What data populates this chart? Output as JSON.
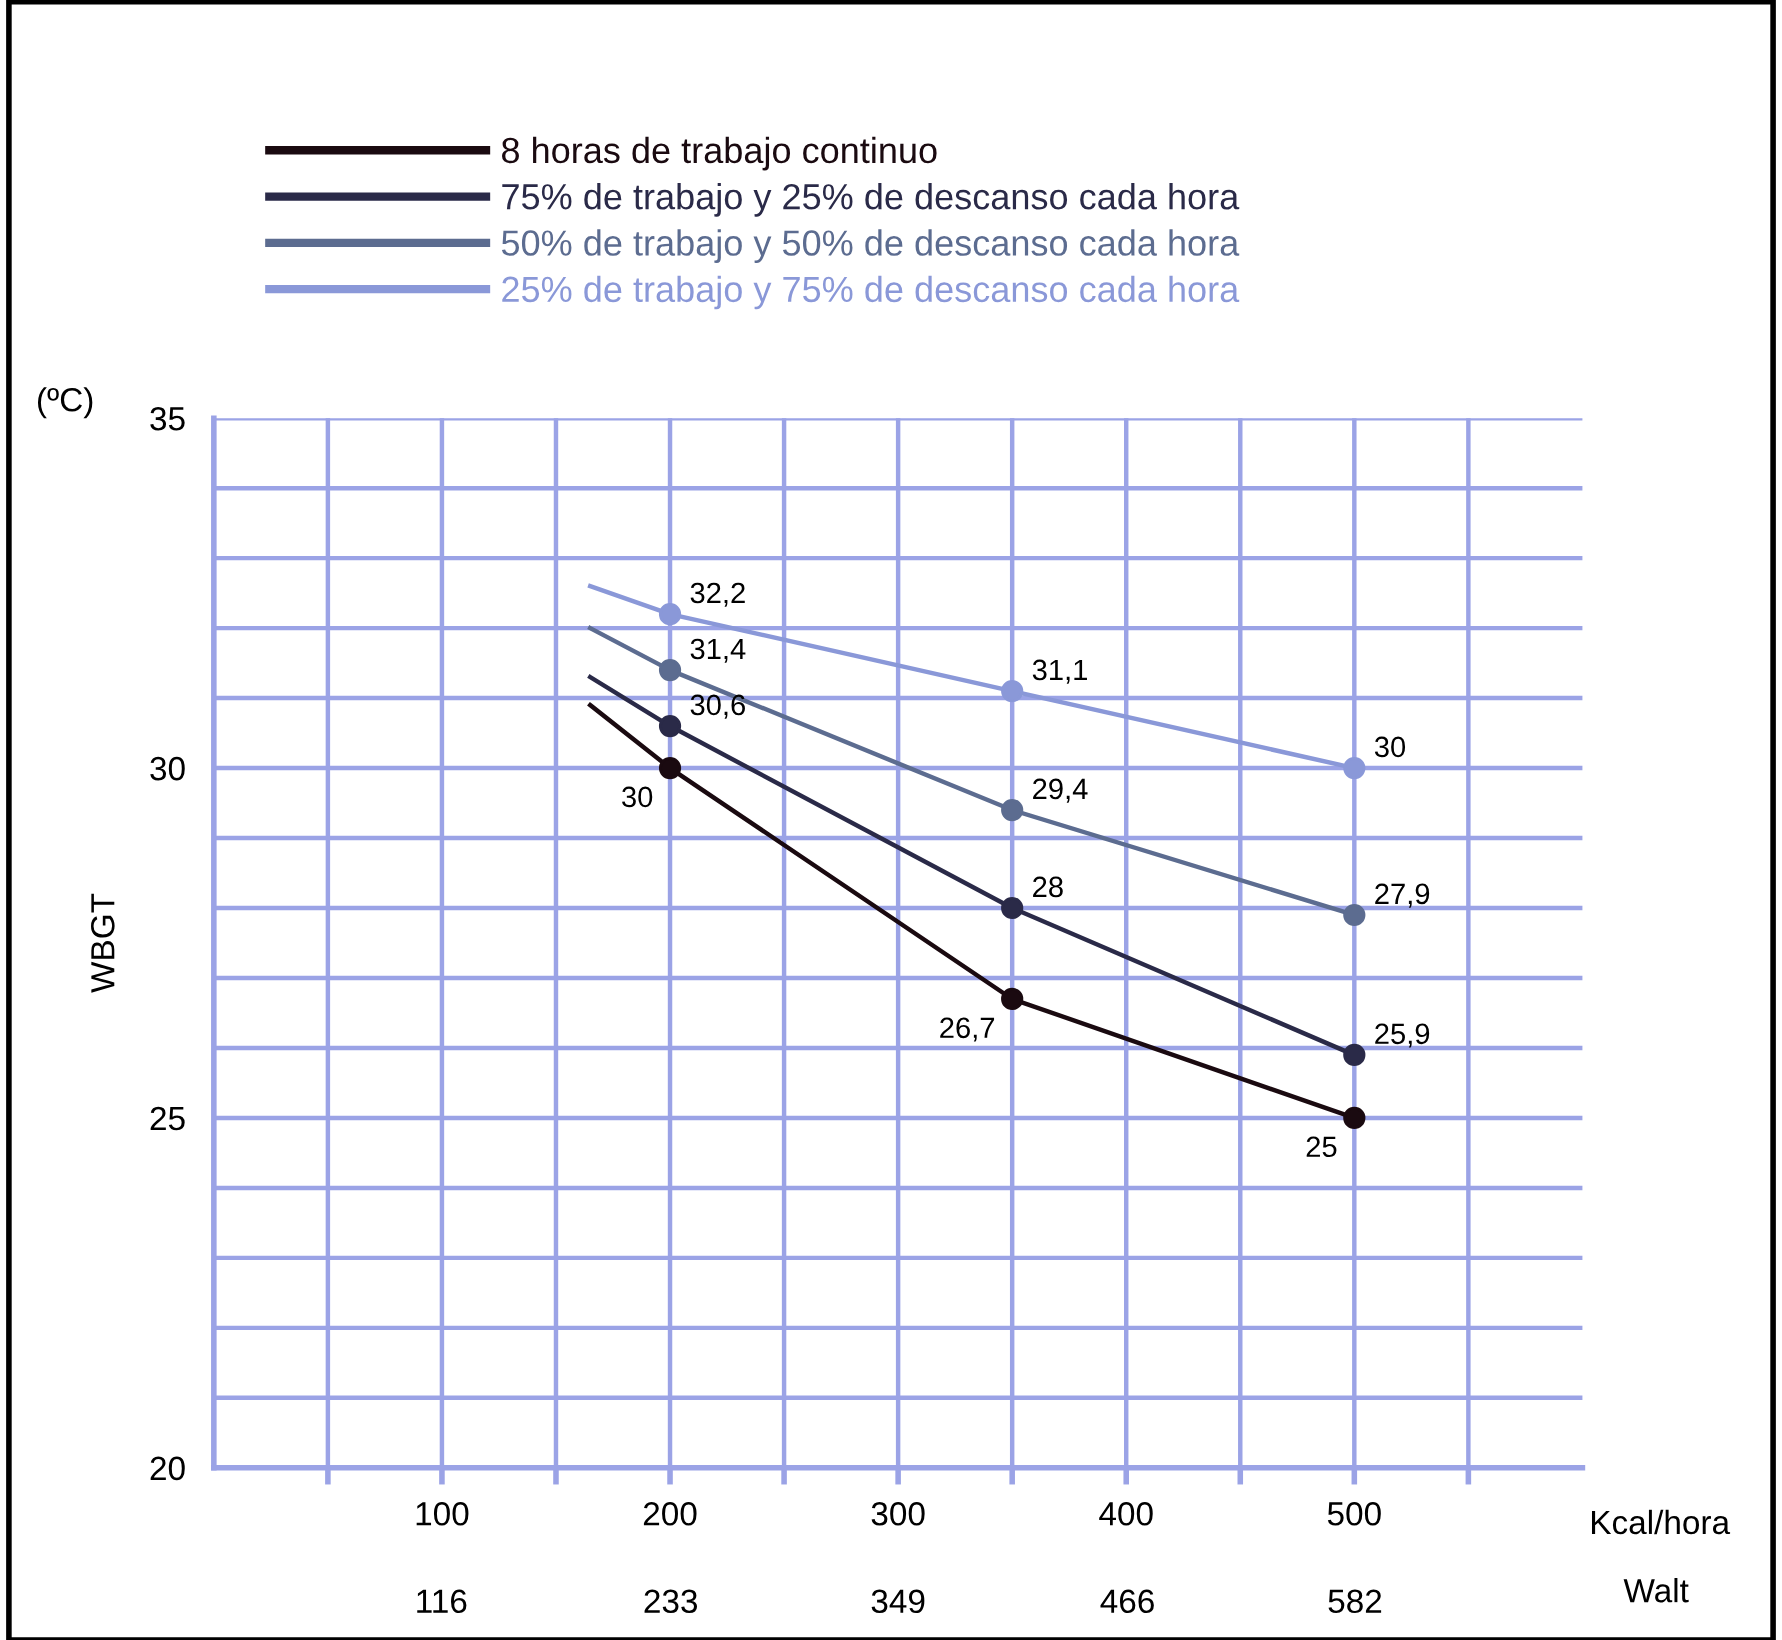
{
  "chart_data": {
    "type": "line",
    "ylabel": "WBGT",
    "xlabel": "Kcal/hora",
    "x2label": "Walt",
    "annotations": [
      "(ºC)"
    ],
    "xlim": [
      0,
      600
    ],
    "xticks": [
      {
        "value": 50,
        "label": null
      },
      100,
      {
        "value": 150,
        "label": null
      },
      200,
      {
        "value": 250,
        "label": null
      },
      300,
      {
        "value": 350,
        "label": null
      },
      400,
      {
        "value": 450,
        "label": null
      },
      500,
      {
        "value": 550,
        "label": null
      }
    ],
    "x2lim": [
      0,
      698
    ],
    "x2ticks": [
      116,
      233,
      349,
      466,
      582
    ],
    "ylim": [
      20,
      35
    ],
    "yticks": [
      20,
      {
        "value": 21,
        "label": null
      },
      {
        "value": 22,
        "label": null
      },
      {
        "value": 23,
        "label": null
      },
      {
        "value": 24,
        "label": null
      },
      25,
      {
        "value": 26,
        "label": null
      },
      {
        "value": 27,
        "label": null
      },
      {
        "value": 28,
        "label": null
      },
      {
        "value": 29,
        "label": null
      },
      30,
      {
        "value": 31,
        "label": null
      },
      {
        "value": 32,
        "label": null
      },
      {
        "value": 33,
        "label": null
      },
      {
        "value": 34,
        "label": null
      },
      35
    ],
    "grid": true,
    "legend": "top",
    "marker": "circle",
    "line_style": "solid",
    "series": [
      {
        "name": "8 horas de trabajo continuo",
        "color": "#1a0a10",
        "x": [
          165,
          200,
          350,
          500
        ],
        "values": [
          30.9,
          30,
          26.7,
          25
        ],
        "value_labels": [
          null,
          "30",
          "26,7",
          "25"
        ]
      },
      {
        "name": "75% de trabajo y 25% de descanso cada hora",
        "color": "#2a2a48",
        "x": [
          165,
          200,
          350,
          500
        ],
        "values": [
          31.3,
          30.6,
          28,
          25.9
        ],
        "value_labels": [
          null,
          "30,6",
          "28",
          "25,9"
        ]
      },
      {
        "name": "50% de trabajo y 50% de descanso cada hora",
        "color": "#5c6c90",
        "x": [
          165,
          200,
          350,
          500
        ],
        "values": [
          32.0,
          31.4,
          29.4,
          27.9
        ],
        "value_labels": [
          null,
          "31,4",
          "29,4",
          "27,9"
        ]
      },
      {
        "name": "25% de trabajo y 75% de descanso cada hora",
        "color": "#8a98d8",
        "x": [
          165,
          200,
          350,
          500
        ],
        "values": [
          32.6,
          32.2,
          31.1,
          30
        ],
        "value_labels": [
          null,
          "32,2",
          "31,1",
          "30"
        ]
      }
    ]
  }
}
